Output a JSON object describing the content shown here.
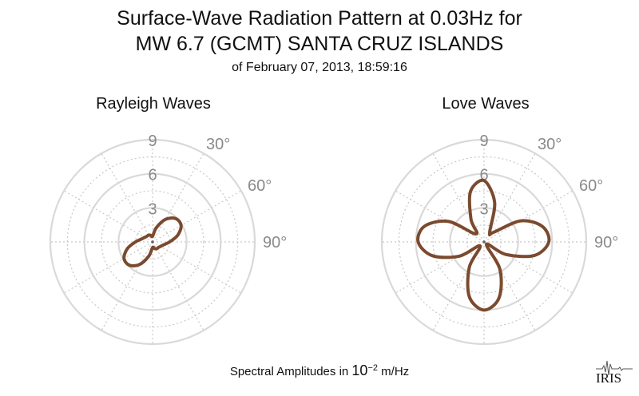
{
  "header": {
    "title_line1": "Surface-Wave Radiation Pattern at 0.03Hz for",
    "title_line2": "MW 6.7 (GCMT) SANTA CRUZ ISLANDS",
    "subtitle": "of February 07, 2013, 18:59:16"
  },
  "footer": {
    "label_prefix": "Spectral Amplitudes in ",
    "unit_base": "10",
    "unit_exponent": "−2",
    "unit_suffix": " m/Hz"
  },
  "logo": {
    "text": "IRIS"
  },
  "colors": {
    "pattern": "#7b4a2e",
    "grid": "#d9d9d9",
    "grid_dotted": "#c8c8c8",
    "tick_label": "#8a8a8a"
  },
  "chart_data": [
    {
      "type": "polar-line",
      "title": "Rayleigh Waves",
      "radial_ticks": [
        "3",
        "6",
        "9"
      ],
      "radial_tick_values": [
        3,
        6,
        9
      ],
      "rmax": 9,
      "angle_labels": [
        "30°",
        "60°",
        "90°"
      ],
      "angle_label_values": [
        30,
        60,
        90
      ],
      "grid": "dotted spokes every 30°",
      "series": [
        {
          "azimuth_deg": [
            0,
            15,
            30,
            45,
            60,
            75,
            90,
            105,
            120,
            135,
            150,
            165,
            180,
            195,
            210,
            225,
            240,
            255,
            270,
            285,
            300,
            315,
            330,
            345
          ],
          "amplitude": [
            0.5,
            1.3,
            2.3,
            2.9,
            2.9,
            2.3,
            1.5,
            1.0,
            0.8,
            0.7,
            0.7,
            0.6,
            0.5,
            1.3,
            2.3,
            2.9,
            2.9,
            2.3,
            1.5,
            1.0,
            0.8,
            0.7,
            0.7,
            0.6
          ]
        }
      ]
    },
    {
      "type": "polar-line",
      "title": "Love Waves",
      "radial_ticks": [
        "3",
        "6",
        "9"
      ],
      "radial_tick_values": [
        3,
        6,
        9
      ],
      "rmax": 9,
      "angle_labels": [
        "30°",
        "60°",
        "90°"
      ],
      "angle_label_values": [
        30,
        60,
        90
      ],
      "grid": "dotted spokes every 30°",
      "series": [
        {
          "azimuth_deg": [
            0,
            15,
            30,
            45,
            60,
            75,
            90,
            105,
            120,
            135,
            150,
            165,
            180,
            195,
            210,
            225,
            240,
            255,
            270,
            285,
            300,
            315,
            330,
            345
          ],
          "amplitude": [
            5.4,
            3.6,
            1.0,
            1.2,
            3.7,
            5.3,
            5.7,
            4.6,
            2.2,
            0.3,
            2.8,
            5.1,
            6.0,
            5.0,
            2.6,
            0.5,
            2.5,
            4.7,
            5.8,
            5.4,
            3.6,
            1.0,
            2.3,
            4.6
          ]
        }
      ]
    }
  ]
}
